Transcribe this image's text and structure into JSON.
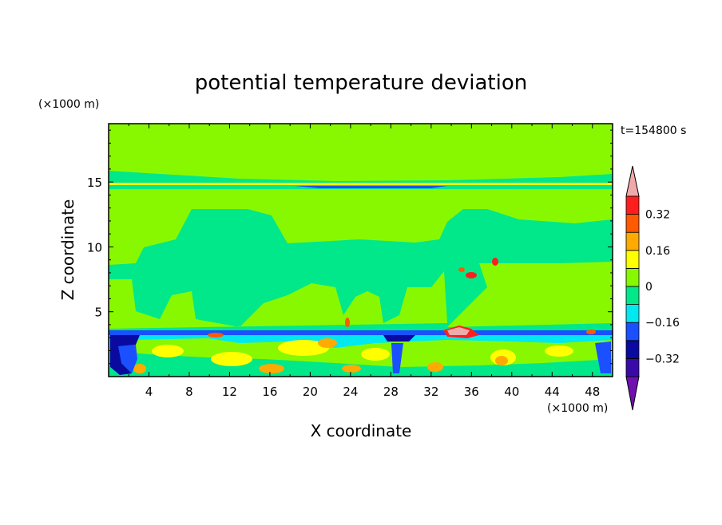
{
  "chart_data": {
    "type": "heatmap",
    "title": "potential temperature deviation",
    "xlabel": "X coordinate",
    "ylabel": "Z coordinate",
    "x_unit": "(×1000 m)",
    "y_unit": "(×1000 m)",
    "time_label": "t=154800 s",
    "xlim": [
      0,
      50
    ],
    "ylim": [
      0,
      19.5
    ],
    "x_ticks": [
      4,
      8,
      12,
      16,
      20,
      24,
      28,
      32,
      36,
      40,
      44,
      48
    ],
    "y_ticks": [
      5,
      10,
      15
    ],
    "colorbar": {
      "levels": [
        -0.4,
        -0.32,
        -0.24,
        -0.16,
        -0.08,
        0,
        0.08,
        0.16,
        0.24,
        0.32,
        0.4
      ],
      "colors": [
        "#3a0aa8",
        "#0a0aa0",
        "#1a50ff",
        "#00e8f0",
        "#00e88a",
        "#88f800",
        "#ffff00",
        "#ffaa00",
        "#ff5a00",
        "#ff1e1e"
      ],
      "under_color": "#7010b0",
      "over_color": "#f0aaaa",
      "labeled_ticks": [
        "0.32",
        "0.16",
        "0",
        "−0.16",
        "−0.32"
      ]
    }
  }
}
